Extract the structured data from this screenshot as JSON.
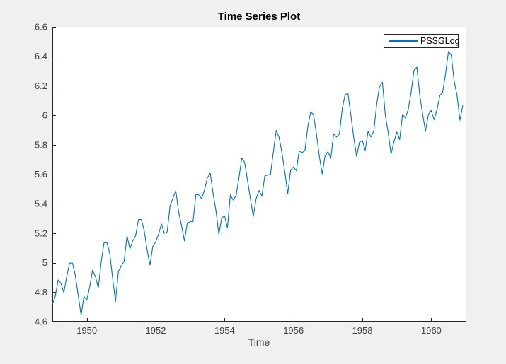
{
  "window": {
    "background_color": "#f0f0f0",
    "plot_background_color": "#ffffff"
  },
  "chart_data": {
    "type": "line",
    "title": "Time Series Plot",
    "xlabel": "Time",
    "ylabel": "",
    "grid": false,
    "box": false,
    "legend": {
      "position": "northeast",
      "entries": [
        "PSSGLog"
      ]
    },
    "xlim": [
      1949,
      1961
    ],
    "ylim": [
      4.6,
      6.6
    ],
    "xticks": [
      1950,
      1952,
      1954,
      1956,
      1958,
      1960
    ],
    "xtick_labels": [
      "1950",
      "1952",
      "1954",
      "1956",
      "1958",
      "1960"
    ],
    "yticks": [
      4.6,
      4.8,
      5.0,
      5.2,
      5.4,
      5.6,
      5.8,
      6.0,
      6.2,
      6.4,
      6.6
    ],
    "ytick_labels": [
      "4.6",
      "4.8",
      "5",
      "5.2",
      "5.4",
      "5.6",
      "5.8",
      "6",
      "6.2",
      "6.4",
      "6.6"
    ],
    "line_color": "#0072BD",
    "axis_color": "#262626",
    "tick_label_color": "#404040",
    "series": [
      {
        "name": "PSSGLog",
        "x_start": 1949,
        "x_step": 0.0833333,
        "values": [
          4.7185,
          4.7707,
          4.8828,
          4.8598,
          4.7958,
          4.9053,
          4.9972,
          4.9972,
          4.9127,
          4.7791,
          4.6444,
          4.7707,
          4.7449,
          4.8363,
          4.9488,
          4.9053,
          4.8283,
          5.0039,
          5.1358,
          5.1358,
          5.0626,
          4.8903,
          4.7362,
          4.9416,
          4.9767,
          5.0106,
          5.1818,
          5.0938,
          5.1475,
          5.1818,
          5.2933,
          5.2933,
          5.2149,
          5.0876,
          4.9836,
          5.112,
          5.1417,
          5.193,
          5.2627,
          5.1985,
          5.2095,
          5.3845,
          5.4381,
          5.4889,
          5.3423,
          5.2523,
          5.1475,
          5.2679,
          5.2781,
          5.2781,
          5.4638,
          5.4596,
          5.4337,
          5.4931,
          5.5759,
          5.6058,
          5.4681,
          5.3519,
          5.193,
          5.3033,
          5.3181,
          5.2364,
          5.4596,
          5.425,
          5.4553,
          5.5759,
          5.7104,
          5.6802,
          5.5568,
          5.4337,
          5.3132,
          5.4337,
          5.4889,
          5.451,
          5.5872,
          5.5947,
          5.5984,
          5.7526,
          5.8972,
          5.8493,
          5.743,
          5.6131,
          5.4681,
          5.6276,
          5.649,
          5.624,
          5.7589,
          5.7462,
          5.7621,
          5.9243,
          6.0234,
          6.0039,
          5.8721,
          5.7236,
          5.6021,
          5.7236,
          5.7526,
          5.7071,
          5.8749,
          5.8522,
          5.8721,
          6.045,
          6.142,
          6.1463,
          6.0014,
          5.8493,
          5.7203,
          5.8171,
          5.8289,
          5.7621,
          5.8916,
          5.8522,
          5.8944,
          6.0753,
          6.1964,
          6.2246,
          6.0014,
          5.8833,
          5.7366,
          5.8201,
          5.8861,
          5.8348,
          6.0064,
          5.9814,
          6.0403,
          6.157,
          6.3063,
          6.3261,
          6.1377,
          6.0088,
          5.8916,
          6.0039,
          6.0331,
          5.9687,
          6.0379,
          6.1334,
          6.157,
          6.2823,
          6.4329,
          6.4069,
          6.2305,
          6.1334,
          5.9661,
          6.0684
        ]
      }
    ]
  }
}
